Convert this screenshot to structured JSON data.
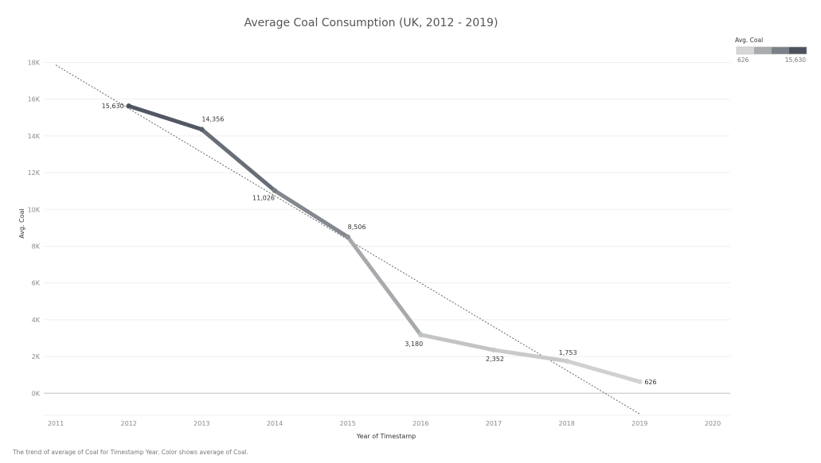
{
  "chart_data": {
    "type": "line",
    "title": "Average Coal Consumption (UK, 2012 - 2019)",
    "xlabel": "Year of Timestamp",
    "ylabel": "Avg. Coal",
    "x_ticks": [
      "2011",
      "2012",
      "2013",
      "2014",
      "2015",
      "2016",
      "2017",
      "2018",
      "2019",
      "2020"
    ],
    "y_ticks": [
      "0K",
      "2K",
      "4K",
      "6K",
      "8K",
      "10K",
      "12K",
      "14K",
      "16K",
      "18K"
    ],
    "xlim": [
      2011,
      2020
    ],
    "ylim": [
      -1200,
      18800
    ],
    "x": [
      2012,
      2013,
      2014,
      2015,
      2016,
      2017,
      2018,
      2019
    ],
    "values": [
      15630,
      14356,
      11026,
      8506,
      3180,
      2352,
      1753,
      626
    ],
    "data_labels": [
      "15,630",
      "14,356",
      "11,026",
      "8,506",
      "3,180",
      "2,352",
      "1,753",
      "626"
    ],
    "trend_line": {
      "style": "dotted",
      "color": "#666666"
    },
    "color_legend": {
      "title": "Avg. Coal",
      "min_label": "626",
      "max_label": "15,630",
      "colors": [
        "#d6d6d6",
        "#a9acaf",
        "#7b8188",
        "#4b525c"
      ]
    },
    "grid": true,
    "caption": "The trend of average of Coal for Timestamp Year.  Color shows average of Coal."
  }
}
